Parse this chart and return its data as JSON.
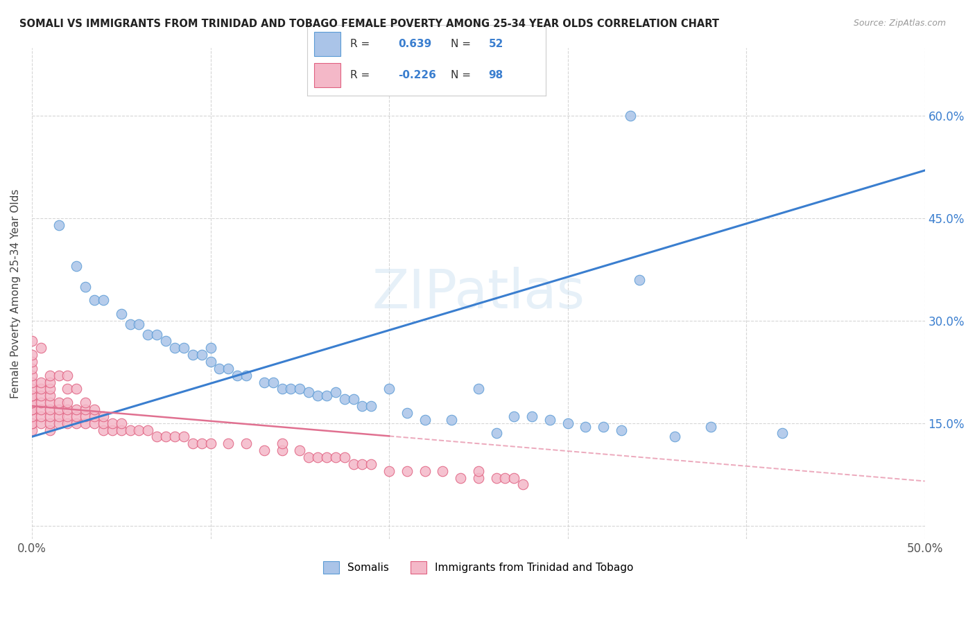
{
  "title": "SOMALI VS IMMIGRANTS FROM TRINIDAD AND TOBAGO FEMALE POVERTY AMONG 25-34 YEAR OLDS CORRELATION CHART",
  "source": "Source: ZipAtlas.com",
  "ylabel": "Female Poverty Among 25-34 Year Olds",
  "xlim": [
    0.0,
    0.5
  ],
  "ylim": [
    -0.02,
    0.7
  ],
  "xticks": [
    0.0,
    0.1,
    0.2,
    0.3,
    0.4,
    0.5
  ],
  "xticklabels": [
    "0.0%",
    "",
    "",
    "",
    "",
    "50.0%"
  ],
  "ytick_positions": [
    0.0,
    0.15,
    0.3,
    0.45,
    0.6
  ],
  "yticklabels_right": [
    "",
    "15.0%",
    "30.0%",
    "45.0%",
    "60.0%"
  ],
  "background_color": "#ffffff",
  "grid_color": "#cccccc",
  "watermark": "ZIPatlas",
  "legend1_label": "Somalis",
  "legend2_label": "Immigrants from Trinidad and Tobago",
  "somali_color": "#aac4e8",
  "somali_edge_color": "#5b9bd5",
  "tt_color": "#f4b8c8",
  "tt_edge_color": "#e06080",
  "line_somali_color": "#3a7ecf",
  "line_tt_color": "#e07090",
  "somali_x": [
    0.015,
    0.025,
    0.03,
    0.035,
    0.04,
    0.05,
    0.055,
    0.06,
    0.065,
    0.07,
    0.075,
    0.08,
    0.085,
    0.09,
    0.095,
    0.1,
    0.1,
    0.105,
    0.11,
    0.115,
    0.12,
    0.13,
    0.135,
    0.14,
    0.145,
    0.15,
    0.155,
    0.16,
    0.165,
    0.17,
    0.175,
    0.18,
    0.185,
    0.19,
    0.2,
    0.21,
    0.22,
    0.235,
    0.25,
    0.26,
    0.27,
    0.28,
    0.29,
    0.3,
    0.31,
    0.32,
    0.33,
    0.34,
    0.36,
    0.38,
    0.42,
    0.335
  ],
  "somali_y": [
    0.44,
    0.38,
    0.35,
    0.33,
    0.33,
    0.31,
    0.295,
    0.295,
    0.28,
    0.28,
    0.27,
    0.26,
    0.26,
    0.25,
    0.25,
    0.24,
    0.26,
    0.23,
    0.23,
    0.22,
    0.22,
    0.21,
    0.21,
    0.2,
    0.2,
    0.2,
    0.195,
    0.19,
    0.19,
    0.195,
    0.185,
    0.185,
    0.175,
    0.175,
    0.2,
    0.165,
    0.155,
    0.155,
    0.2,
    0.135,
    0.16,
    0.16,
    0.155,
    0.15,
    0.145,
    0.145,
    0.14,
    0.36,
    0.13,
    0.145,
    0.135,
    0.6
  ],
  "tt_x": [
    0.0,
    0.0,
    0.0,
    0.0,
    0.0,
    0.0,
    0.0,
    0.0,
    0.0,
    0.0,
    0.0,
    0.0,
    0.0,
    0.0,
    0.0,
    0.0,
    0.0,
    0.005,
    0.005,
    0.005,
    0.005,
    0.005,
    0.005,
    0.005,
    0.005,
    0.01,
    0.01,
    0.01,
    0.01,
    0.01,
    0.01,
    0.01,
    0.01,
    0.01,
    0.015,
    0.015,
    0.015,
    0.015,
    0.015,
    0.02,
    0.02,
    0.02,
    0.02,
    0.02,
    0.02,
    0.025,
    0.025,
    0.025,
    0.025,
    0.03,
    0.03,
    0.03,
    0.03,
    0.035,
    0.035,
    0.035,
    0.04,
    0.04,
    0.04,
    0.045,
    0.045,
    0.05,
    0.05,
    0.055,
    0.06,
    0.065,
    0.07,
    0.075,
    0.08,
    0.085,
    0.09,
    0.095,
    0.1,
    0.11,
    0.12,
    0.13,
    0.14,
    0.14,
    0.15,
    0.155,
    0.16,
    0.165,
    0.17,
    0.175,
    0.18,
    0.185,
    0.19,
    0.2,
    0.21,
    0.22,
    0.23,
    0.24,
    0.25,
    0.25,
    0.26,
    0.265,
    0.27,
    0.275
  ],
  "tt_y": [
    0.14,
    0.15,
    0.15,
    0.16,
    0.17,
    0.17,
    0.18,
    0.18,
    0.19,
    0.19,
    0.2,
    0.21,
    0.22,
    0.23,
    0.24,
    0.25,
    0.27,
    0.15,
    0.16,
    0.17,
    0.18,
    0.19,
    0.2,
    0.21,
    0.26,
    0.14,
    0.15,
    0.16,
    0.17,
    0.18,
    0.19,
    0.2,
    0.21,
    0.22,
    0.15,
    0.16,
    0.17,
    0.18,
    0.22,
    0.15,
    0.16,
    0.17,
    0.18,
    0.2,
    0.22,
    0.15,
    0.16,
    0.17,
    0.2,
    0.15,
    0.16,
    0.17,
    0.18,
    0.15,
    0.16,
    0.17,
    0.14,
    0.15,
    0.16,
    0.14,
    0.15,
    0.14,
    0.15,
    0.14,
    0.14,
    0.14,
    0.13,
    0.13,
    0.13,
    0.13,
    0.12,
    0.12,
    0.12,
    0.12,
    0.12,
    0.11,
    0.11,
    0.12,
    0.11,
    0.1,
    0.1,
    0.1,
    0.1,
    0.1,
    0.09,
    0.09,
    0.09,
    0.08,
    0.08,
    0.08,
    0.08,
    0.07,
    0.07,
    0.08,
    0.07,
    0.07,
    0.07,
    0.06
  ]
}
